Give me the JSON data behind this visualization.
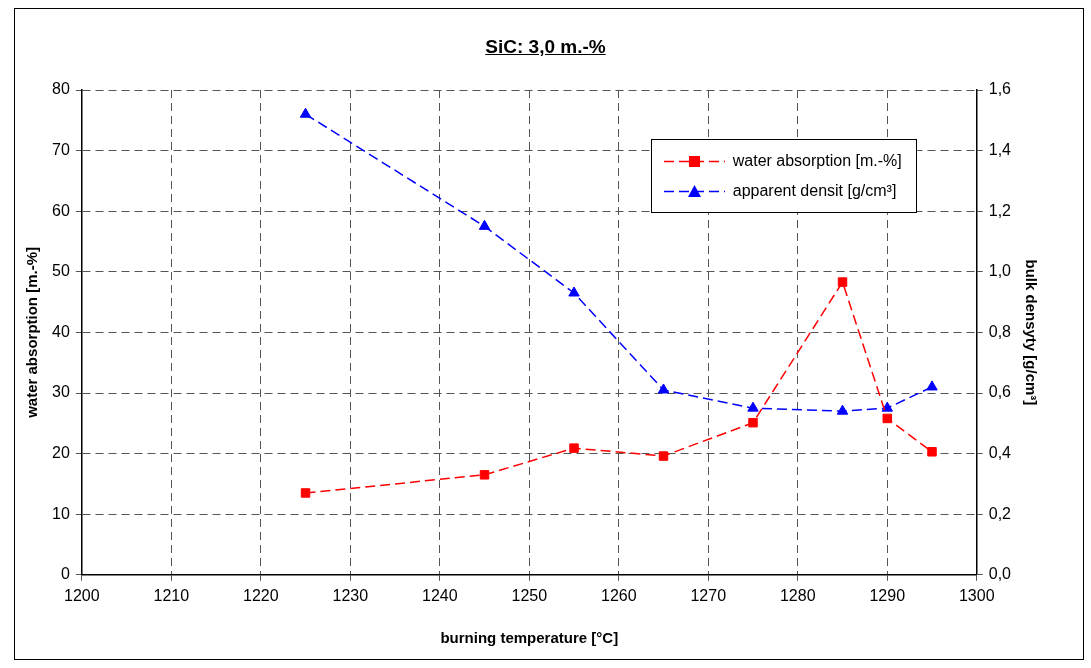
{
  "chart_data": {
    "type": "line",
    "title": "SiC:  3,0 m.-%",
    "xlabel": "burning temperature [°C]",
    "ylabel": "water absorption [m.-%]",
    "y2label": "bulk densyty [g/cm³]",
    "x": [
      1225,
      1245,
      1255,
      1265,
      1275,
      1285,
      1290,
      1295
    ],
    "series": [
      {
        "name": "water absorption [m.-%]",
        "color": "#ff0000",
        "marker": "square",
        "line_style": "dashed",
        "values": [
          13.5,
          16.5,
          20.9,
          19.6,
          25.1,
          48.3,
          25.8,
          20.3
        ]
      },
      {
        "name": "apparent densit [g/cm³]",
        "color": "#0000ff",
        "marker": "triangle",
        "line_style": "dashed",
        "axis": "y2",
        "values": [
          1.52,
          1.15,
          0.93,
          0.61,
          0.55,
          0.54,
          0.55,
          0.62
        ]
      }
    ],
    "xlim": [
      1200,
      1300
    ],
    "xticks": [
      1200,
      1210,
      1220,
      1230,
      1240,
      1250,
      1260,
      1270,
      1280,
      1290,
      1300
    ],
    "ylim": [
      0,
      80
    ],
    "yticks": [
      0,
      10,
      20,
      30,
      40,
      50,
      60,
      70,
      80
    ],
    "y2lim": [
      0,
      1.6
    ],
    "y2ticks": [
      {
        "value": 0,
        "label": "0,0"
      },
      {
        "value": 0.2,
        "label": "0,2"
      },
      {
        "value": 0.4,
        "label": "0,4"
      },
      {
        "value": 0.6,
        "label": "0,6"
      },
      {
        "value": 0.8,
        "label": "0,8"
      },
      {
        "value": 1.0,
        "label": "1,0"
      },
      {
        "value": 1.2,
        "label": "1,2"
      },
      {
        "value": 1.4,
        "label": "1,4"
      },
      {
        "value": 1.6,
        "label": "1,6"
      }
    ],
    "grid": true,
    "legend": "top right"
  }
}
